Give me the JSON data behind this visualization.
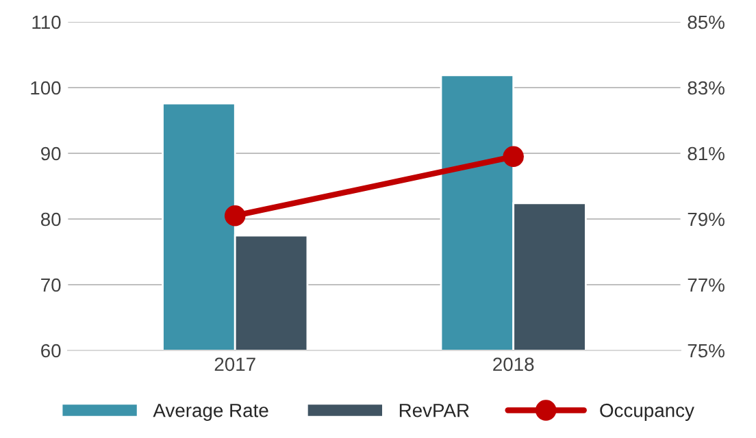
{
  "chart_data": {
    "type": "bar",
    "categories": [
      "2017",
      "2018"
    ],
    "series": [
      {
        "name": "Average Rate",
        "color": "#3c93aa",
        "values": [
          97.6,
          101.9
        ]
      },
      {
        "name": "RevPAR",
        "color": "#405462",
        "values": [
          77.5,
          82.4
        ]
      },
      {
        "name": "Occupancy",
        "type": "line",
        "axis": "y2",
        "color": "#c00000",
        "values": [
          79.1,
          80.9
        ],
        "marker": "circle"
      }
    ],
    "ylim": [
      60,
      110
    ],
    "yticks": [
      60,
      70,
      80,
      90,
      100,
      110
    ],
    "y2lim": [
      75,
      85
    ],
    "y2ticks": [
      {
        "value": 75,
        "label": "75%"
      },
      {
        "value": 77,
        "label": "77%"
      },
      {
        "value": 79,
        "label": "79%"
      },
      {
        "value": 81,
        "label": "81%"
      },
      {
        "value": 83,
        "label": "83%"
      },
      {
        "value": 85,
        "label": "85%"
      }
    ],
    "grid": "y",
    "legend": "bottom"
  }
}
